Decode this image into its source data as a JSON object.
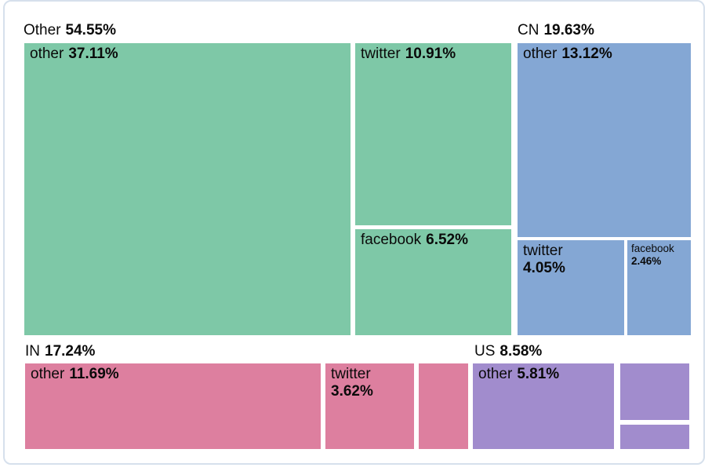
{
  "card": {
    "background": "#ffffff",
    "border_color": "#d6e0ec"
  },
  "chart_data": {
    "type": "treemap",
    "title": "",
    "value_unit": "%",
    "legend_position": "none",
    "groups": [
      {
        "label": "Other",
        "value": 54.55,
        "value_text": "54.55%",
        "color": "#7ec8a7",
        "children": [
          {
            "label": "other",
            "value": 37.11,
            "value_text": "37.11%"
          },
          {
            "label": "twitter",
            "value": 10.91,
            "value_text": "10.91%"
          },
          {
            "label": "facebook",
            "value": 6.52,
            "value_text": "6.52%"
          }
        ]
      },
      {
        "label": "CN",
        "value": 19.63,
        "value_text": "19.63%",
        "color": "#84a7d4",
        "children": [
          {
            "label": "other",
            "value": 13.12,
            "value_text": "13.12%"
          },
          {
            "label": "twitter",
            "value": 4.05,
            "value_text": "4.05%"
          },
          {
            "label": "facebook",
            "value": 2.46,
            "value_text": "2.46%"
          }
        ]
      },
      {
        "label": "IN",
        "value": 17.24,
        "value_text": "17.24%",
        "color": "#dd7f9f",
        "children": [
          {
            "label": "other",
            "value": 11.69,
            "value_text": "11.69%"
          },
          {
            "label": "twitter",
            "value": 3.62,
            "value_text": "3.62%"
          },
          {
            "label": "",
            "value": 1.93,
            "value_text": "",
            "estimated": true
          }
        ]
      },
      {
        "label": "US",
        "value": 8.58,
        "value_text": "8.58%",
        "color": "#a18ccd",
        "children": [
          {
            "label": "other",
            "value": 5.81,
            "value_text": "5.81%"
          },
          {
            "label": "",
            "value": 1.9,
            "value_text": "",
            "estimated": true
          },
          {
            "label": "",
            "value": 0.87,
            "value_text": "",
            "estimated": true
          }
        ]
      }
    ]
  }
}
